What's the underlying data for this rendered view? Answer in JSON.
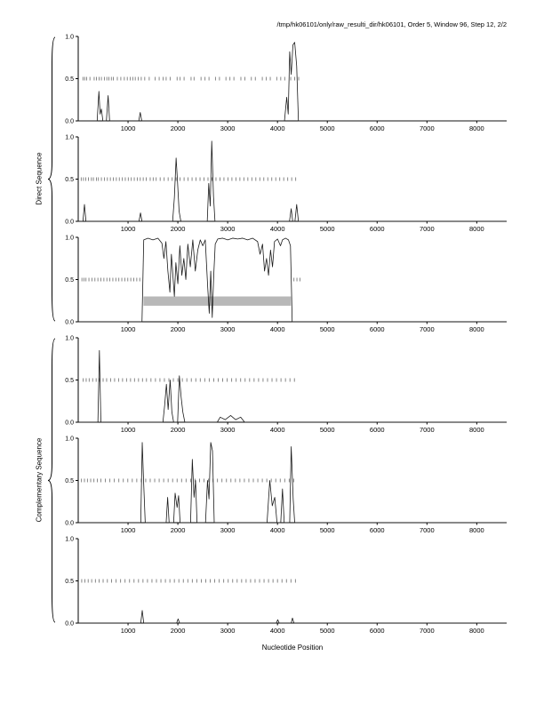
{
  "page_title": "/tmp/hk06101/only/raw_resulti_dir/hk06101, Order 5, Window 96, Step 12, 2/2",
  "groups": [
    {
      "label": "Direct Sequence",
      "panels": [
        0,
        1,
        2
      ]
    },
    {
      "label": "Complementary Sequence",
      "panels": [
        3,
        4,
        5
      ]
    }
  ],
  "chart_data": {
    "type": "line",
    "title": "/tmp/hk06101/only/raw_resulti_dir/hk06101, Order 5, Window 96, Step 12, 2/2",
    "xlabel": "Nucleotide Position",
    "ylabel_top": "Direct Sequence",
    "ylabel_bottom": "Complementary Sequence",
    "xlim": [
      0,
      8600
    ],
    "ylim": [
      0,
      1
    ],
    "x_ticks": [
      1000,
      2000,
      3000,
      4000,
      5000,
      6000,
      7000,
      8000
    ],
    "y_ticks": [
      0,
      0.5,
      1
    ],
    "y_tick_labels": [
      "0.0",
      "0.5",
      "1.0"
    ],
    "marker_y": 0.5,
    "curve_color": "#1a1a1a",
    "marker_color": "#7a7a7a",
    "band_color": "#b8b8b8",
    "panels": [
      {
        "group": "Direct Sequence",
        "curve": [
          [
            0,
            0
          ],
          [
            380,
            0
          ],
          [
            415,
            0.35
          ],
          [
            440,
            0.08
          ],
          [
            465,
            0.14
          ],
          [
            495,
            0
          ],
          [
            565,
            0
          ],
          [
            600,
            0.3
          ],
          [
            630,
            0
          ],
          [
            1215,
            0
          ],
          [
            1245,
            0.1
          ],
          [
            1275,
            0
          ],
          [
            4140,
            0
          ],
          [
            4185,
            0.28
          ],
          [
            4215,
            0.08
          ],
          [
            4245,
            0.82
          ],
          [
            4275,
            0.55
          ],
          [
            4310,
            0.9
          ],
          [
            4345,
            0.93
          ],
          [
            4385,
            0.65
          ],
          [
            4420,
            0
          ],
          [
            8600,
            0
          ]
        ],
        "markers": [
          95,
          130,
          170,
          235,
          320,
          365,
          420,
          465,
          525,
          575,
          615,
          665,
          705,
          785,
          855,
          925,
          985,
          1045,
          1095,
          1145,
          1205,
          1265,
          1335,
          1425,
          1545,
          1625,
          1705,
          1765,
          1845,
          1985,
          2045,
          2125,
          2265,
          2325,
          2465,
          2545,
          2625,
          2755,
          2835,
          2965,
          3045,
          3125,
          3265,
          3345,
          3475,
          3555,
          3695,
          3775,
          3855,
          3985,
          4065,
          4145,
          4265,
          4345,
          4425
        ]
      },
      {
        "group": "Direct Sequence",
        "curve": [
          [
            0,
            0
          ],
          [
            95,
            0
          ],
          [
            125,
            0.2
          ],
          [
            155,
            0
          ],
          [
            1220,
            0
          ],
          [
            1250,
            0.1
          ],
          [
            1280,
            0
          ],
          [
            1895,
            0
          ],
          [
            1930,
            0.28
          ],
          [
            1965,
            0.75
          ],
          [
            1995,
            0.45
          ],
          [
            2025,
            0.12
          ],
          [
            2060,
            0
          ],
          [
            2590,
            0
          ],
          [
            2620,
            0.45
          ],
          [
            2650,
            0.18
          ],
          [
            2680,
            0.95
          ],
          [
            2715,
            0.3
          ],
          [
            2745,
            0
          ],
          [
            4240,
            0
          ],
          [
            4275,
            0.15
          ],
          [
            4305,
            0
          ],
          [
            4350,
            0
          ],
          [
            4385,
            0.2
          ],
          [
            4420,
            0
          ],
          [
            8600,
            0
          ]
        ],
        "markers": [
          60,
          105,
          150,
          205,
          265,
          305,
          365,
          405,
          465,
          525,
          585,
          645,
          705,
          765,
          825,
          885,
          945,
          1005,
          1065,
          1125,
          1185,
          1245,
          1305,
          1365,
          1445,
          1505,
          1565,
          1645,
          1725,
          1805,
          1885,
          1965,
          2045,
          2125,
          2205,
          2285,
          2365,
          2445,
          2525,
          2605,
          2685,
          2765,
          2845,
          2925,
          3005,
          3085,
          3165,
          3245,
          3325,
          3405,
          3485,
          3565,
          3645,
          3725,
          3805,
          3885,
          3965,
          4045,
          4125,
          4205,
          4285,
          4365
        ]
      },
      {
        "group": "Direct Sequence",
        "curve": [
          [
            0,
            0
          ],
          [
            1280,
            0
          ],
          [
            1300,
            0.55
          ],
          [
            1315,
            0.97
          ],
          [
            1400,
            0.99
          ],
          [
            1500,
            0.97
          ],
          [
            1600,
            0.99
          ],
          [
            1680,
            0.93
          ],
          [
            1720,
            0.75
          ],
          [
            1760,
            0.95
          ],
          [
            1800,
            0.6
          ],
          [
            1840,
            0.35
          ],
          [
            1870,
            0.8
          ],
          [
            1900,
            0.55
          ],
          [
            1930,
            0.3
          ],
          [
            1960,
            0.7
          ],
          [
            2000,
            0.45
          ],
          [
            2040,
            0.9
          ],
          [
            2080,
            0.55
          ],
          [
            2120,
            0.75
          ],
          [
            2160,
            0.5
          ],
          [
            2200,
            0.92
          ],
          [
            2250,
            0.65
          ],
          [
            2300,
            0.97
          ],
          [
            2350,
            0.6
          ],
          [
            2400,
            0.85
          ],
          [
            2450,
            0.97
          ],
          [
            2500,
            0.9
          ],
          [
            2550,
            0.97
          ],
          [
            2600,
            0.4
          ],
          [
            2630,
            0.1
          ],
          [
            2660,
            0.6
          ],
          [
            2690,
            0.05
          ],
          [
            2720,
            0.55
          ],
          [
            2750,
            0.92
          ],
          [
            2800,
            0.98
          ],
          [
            2900,
            0.99
          ],
          [
            3000,
            0.97
          ],
          [
            3100,
            0.99
          ],
          [
            3200,
            0.98
          ],
          [
            3300,
            0.99
          ],
          [
            3400,
            0.97
          ],
          [
            3500,
            0.99
          ],
          [
            3600,
            0.95
          ],
          [
            3650,
            0.8
          ],
          [
            3700,
            0.92
          ],
          [
            3740,
            0.6
          ],
          [
            3780,
            0.75
          ],
          [
            3820,
            0.55
          ],
          [
            3860,
            0.85
          ],
          [
            3900,
            0.65
          ],
          [
            3940,
            0.95
          ],
          [
            4000,
            0.98
          ],
          [
            4060,
            0.9
          ],
          [
            4100,
            0.97
          ],
          [
            4160,
            0.99
          ],
          [
            4220,
            0.97
          ],
          [
            4260,
            0.9
          ],
          [
            4280,
            0.4
          ],
          [
            4295,
            0
          ],
          [
            8600,
            0
          ]
        ],
        "band": {
          "x0": 1310,
          "x1": 4270,
          "y0": 0.19,
          "y1": 0.3
        },
        "markers": [
          75,
          115,
          155,
          215,
          275,
          335,
          395,
          455,
          515,
          575,
          635,
          695,
          755,
          815,
          875,
          935,
          995,
          1055,
          1115,
          1175,
          1235,
          4330,
          4390,
          4450
        ]
      },
      {
        "group": "Complementary Sequence",
        "curve": [
          [
            0,
            0
          ],
          [
            395,
            0
          ],
          [
            425,
            0.85
          ],
          [
            455,
            0
          ],
          [
            1700,
            0
          ],
          [
            1735,
            0.2
          ],
          [
            1770,
            0.45
          ],
          [
            1805,
            0.15
          ],
          [
            1845,
            0.5
          ],
          [
            1880,
            0.12
          ],
          [
            1915,
            0
          ],
          [
            1995,
            0
          ],
          [
            2030,
            0.55
          ],
          [
            2065,
            0.3
          ],
          [
            2100,
            0.12
          ],
          [
            2140,
            0
          ],
          [
            2790,
            0
          ],
          [
            2850,
            0.06
          ],
          [
            2950,
            0.03
          ],
          [
            3060,
            0.08
          ],
          [
            3160,
            0.03
          ],
          [
            3260,
            0.06
          ],
          [
            3340,
            0
          ],
          [
            8600,
            0
          ]
        ],
        "markers": [
          100,
          160,
          220,
          290,
          360,
          430,
          500,
          570,
          650,
          730,
          810,
          890,
          970,
          1050,
          1130,
          1210,
          1290,
          1370,
          1460,
          1550,
          1640,
          1730,
          1820,
          1910,
          2000,
          2090,
          2180,
          2270,
          2360,
          2450,
          2540,
          2630,
          2720,
          2810,
          2900,
          2990,
          3080,
          3170,
          3260,
          3350,
          3440,
          3530,
          3620,
          3710,
          3800,
          3890,
          3980,
          4070,
          4160,
          4250,
          4340
        ]
      },
      {
        "group": "Complementary Sequence",
        "curve": [
          [
            0,
            0
          ],
          [
            1255,
            0
          ],
          [
            1285,
            0.95
          ],
          [
            1315,
            0.45
          ],
          [
            1345,
            0
          ],
          [
            1765,
            0
          ],
          [
            1795,
            0.3
          ],
          [
            1825,
            0
          ],
          [
            1915,
            0
          ],
          [
            1945,
            0.35
          ],
          [
            1985,
            0.18
          ],
          [
            2015,
            0.32
          ],
          [
            2045,
            0
          ],
          [
            2255,
            0
          ],
          [
            2290,
            0.75
          ],
          [
            2325,
            0.3
          ],
          [
            2355,
            0.5
          ],
          [
            2385,
            0
          ],
          [
            2555,
            0
          ],
          [
            2595,
            0.5
          ],
          [
            2625,
            0.28
          ],
          [
            2660,
            0.95
          ],
          [
            2695,
            0.85
          ],
          [
            2730,
            0
          ],
          [
            3790,
            0
          ],
          [
            3845,
            0.5
          ],
          [
            3895,
            0.2
          ],
          [
            3945,
            0.3
          ],
          [
            3990,
            0
          ],
          [
            4065,
            0
          ],
          [
            4100,
            0.4
          ],
          [
            4135,
            0
          ],
          [
            4245,
            0
          ],
          [
            4275,
            0.9
          ],
          [
            4315,
            0.28
          ],
          [
            4345,
            0
          ],
          [
            8600,
            0
          ]
        ],
        "markers": [
          65,
          125,
          185,
          250,
          315,
          385,
          455,
          545,
          635,
          725,
          815,
          905,
          995,
          1085,
          1175,
          1265,
          1355,
          1445,
          1535,
          1625,
          1715,
          1805,
          1895,
          1985,
          2075,
          2165,
          2255,
          2345,
          2435,
          2525,
          2615,
          2705,
          2795,
          2885,
          2975,
          3065,
          3155,
          3245,
          3335,
          3425,
          3515,
          3605,
          3695,
          3785,
          3875,
          3965,
          4055,
          4145,
          4235,
          4325
        ]
      },
      {
        "group": "Complementary Sequence",
        "curve": [
          [
            0,
            0
          ],
          [
            1255,
            0
          ],
          [
            1285,
            0.15
          ],
          [
            1315,
            0
          ],
          [
            1975,
            0
          ],
          [
            2005,
            0.05
          ],
          [
            2035,
            0
          ],
          [
            3975,
            0
          ],
          [
            4005,
            0.04
          ],
          [
            4035,
            0
          ],
          [
            4275,
            0
          ],
          [
            4300,
            0.06
          ],
          [
            4330,
            0
          ],
          [
            8600,
            0
          ]
        ],
        "markers": [
          70,
          135,
          200,
          270,
          345,
          420,
          500,
          585,
          670,
          760,
          850,
          940,
          1030,
          1120,
          1210,
          1300,
          1390,
          1480,
          1570,
          1660,
          1750,
          1840,
          1930,
          2020,
          2110,
          2200,
          2290,
          2380,
          2470,
          2560,
          2650,
          2740,
          2830,
          2920,
          3010,
          3100,
          3190,
          3280,
          3370,
          3460,
          3550,
          3640,
          3730,
          3820,
          3910,
          4000,
          4090,
          4180,
          4270,
          4360
        ]
      }
    ]
  }
}
